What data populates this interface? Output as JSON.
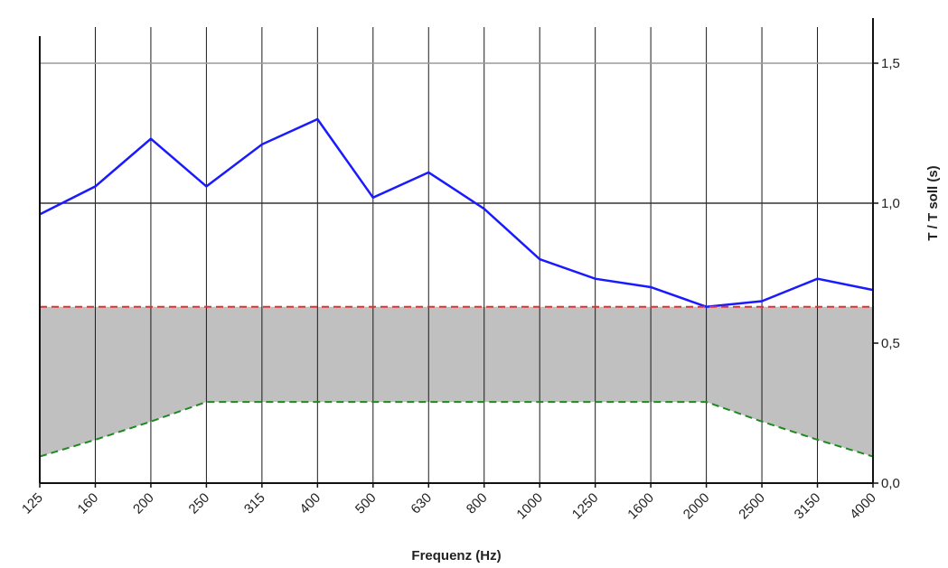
{
  "chart_data": {
    "type": "line",
    "xlabel": "Frequenz (Hz)",
    "ylabel": "T / T soll (s)",
    "y_axis_side": "right",
    "ylim": [
      0,
      1.5
    ],
    "y_ticks": [
      "0,0",
      "0,5",
      "1,0",
      "1,5"
    ],
    "y_tick_values": [
      0,
      0.5,
      1.0,
      1.5
    ],
    "categories": [
      "125",
      "160",
      "200",
      "250",
      "315",
      "400",
      "500",
      "630",
      "800",
      "1000",
      "1250",
      "1600",
      "2000",
      "2500",
      "3150",
      "4000"
    ],
    "grid": "vertical lines at each category; horizontal lines at 1.0 and 1.5",
    "series": [
      {
        "values": [
          0.96,
          1.06,
          1.23,
          1.06,
          1.21,
          1.3,
          1.02,
          1.11,
          0.98,
          0.8,
          0.73,
          0.7,
          0.63,
          0.65,
          0.73,
          0.69
        ],
        "color": "#1a1aff",
        "style": "solid"
      },
      {
        "values": [
          0.63,
          0.63,
          0.63,
          0.63,
          0.63,
          0.63,
          0.63,
          0.63,
          0.63,
          0.63,
          0.63,
          0.63,
          0.63,
          0.63,
          0.63,
          0.63
        ],
        "color": "#e53030",
        "style": "dashed"
      },
      {
        "values": [
          0.095,
          0.155,
          0.22,
          0.29,
          0.29,
          0.29,
          0.29,
          0.29,
          0.29,
          0.29,
          0.29,
          0.29,
          0.29,
          0.22,
          0.155,
          0.095
        ],
        "color": "#1f8a1f",
        "style": "dashed"
      }
    ],
    "tolerance_band_fill": "#c0c0c0"
  }
}
